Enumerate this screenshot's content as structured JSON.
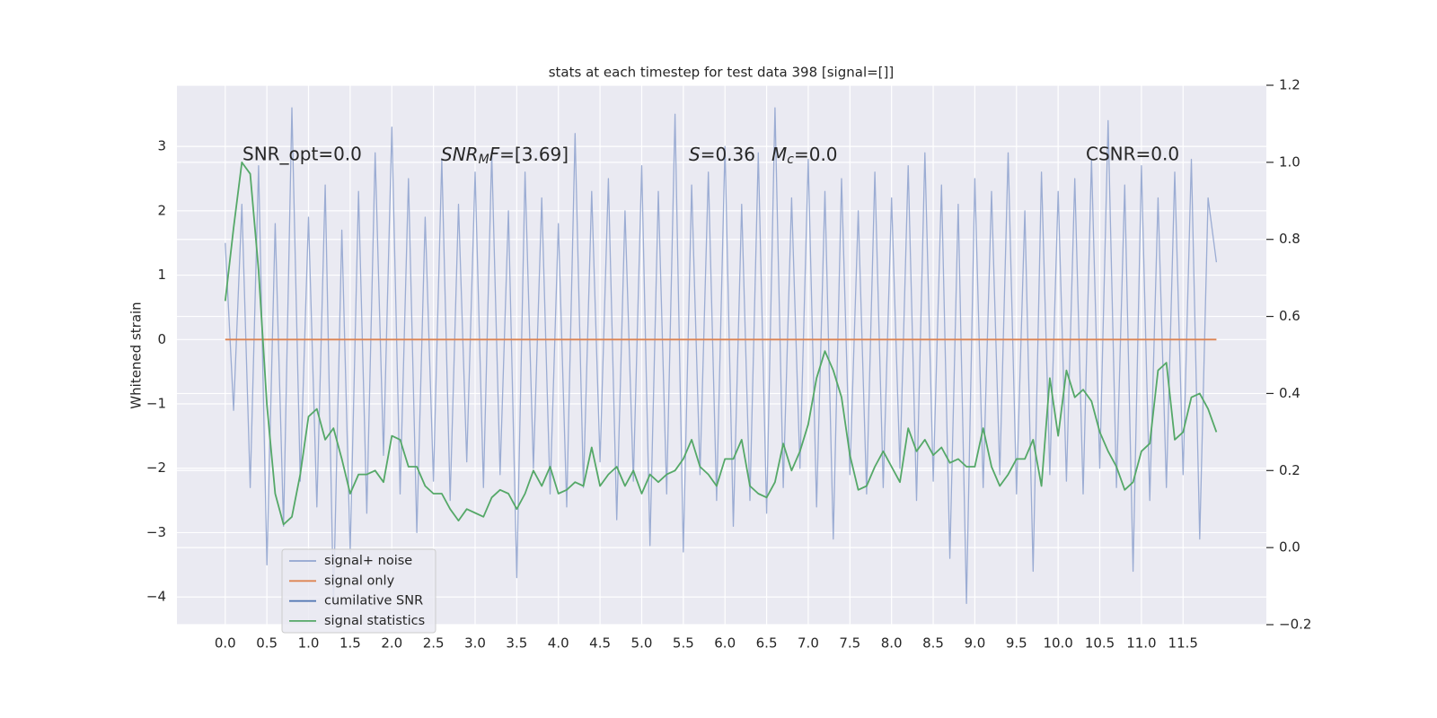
{
  "chart_data": {
    "type": "line",
    "title": "stats at each timestep for test data 398 [signal=[]]",
    "ylabel": "Whitened strain",
    "x": [
      0,
      0.1,
      0.2,
      0.3,
      0.4,
      0.5,
      0.6,
      0.7,
      0.8,
      0.9,
      1,
      1.1,
      1.2,
      1.3,
      1.4,
      1.5,
      1.6,
      1.7,
      1.8,
      1.9,
      2,
      2.1,
      2.2,
      2.3,
      2.4,
      2.5,
      2.6,
      2.7,
      2.8,
      2.9,
      3,
      3.1,
      3.2,
      3.3,
      3.4,
      3.5,
      3.6,
      3.7,
      3.8,
      3.9,
      4,
      4.1,
      4.2,
      4.3,
      4.4,
      4.5,
      4.6,
      4.7,
      4.8,
      4.9,
      5,
      5.1,
      5.2,
      5.3,
      5.4,
      5.5,
      5.6,
      5.7,
      5.8,
      5.9,
      6,
      6.1,
      6.2,
      6.3,
      6.4,
      6.5,
      6.6,
      6.7,
      6.8,
      6.9,
      7,
      7.1,
      7.2,
      7.3,
      7.4,
      7.5,
      7.6,
      7.7,
      7.8,
      7.9,
      8,
      8.1,
      8.2,
      8.3,
      8.4,
      8.5,
      8.6,
      8.7,
      8.8,
      8.9,
      9,
      9.1,
      9.2,
      9.3,
      9.4,
      9.5,
      9.6,
      9.7,
      9.8,
      9.9,
      10,
      10.1,
      10.2,
      10.3,
      10.4,
      10.5,
      10.6,
      10.7,
      10.8,
      10.9,
      11,
      11.1,
      11.2,
      11.3,
      11.4,
      11.5,
      11.6,
      11.7,
      11.8,
      11.9
    ],
    "series": [
      {
        "name": "signal+ noise",
        "color": "#92a5cf",
        "values": [
          1.5,
          -1.1,
          2.1,
          -2.3,
          2.7,
          -3.5,
          1.8,
          -2.9,
          3.6,
          -2.2,
          1.9,
          -2.6,
          2.4,
          -4.1,
          1.7,
          -3.3,
          2.3,
          -2.7,
          2.9,
          -1.8,
          3.3,
          -2.4,
          2.5,
          -3.0,
          1.9,
          -2.2,
          2.8,
          -2.5,
          2.1,
          -1.9,
          2.6,
          -2.3,
          2.9,
          -2.1,
          2.0,
          -3.7,
          2.6,
          -2.0,
          2.2,
          -2.4,
          1.8,
          -2.6,
          3.2,
          -2.3,
          2.3,
          -1.9,
          2.5,
          -2.8,
          2.0,
          -2.2,
          2.7,
          -3.2,
          2.3,
          -2.4,
          3.5,
          -3.3,
          2.4,
          -2.1,
          2.6,
          -2.5,
          3.0,
          -2.9,
          2.1,
          -2.5,
          2.9,
          -2.7,
          3.6,
          -2.3,
          2.2,
          -2.0,
          2.8,
          -2.6,
          2.3,
          -3.1,
          2.5,
          -2.1,
          2.0,
          -2.4,
          2.6,
          -2.3,
          2.2,
          -2.0,
          2.7,
          -2.5,
          2.9,
          -2.2,
          2.4,
          -3.4,
          2.1,
          -4.1,
          2.5,
          -2.3,
          2.3,
          -2.1,
          2.9,
          -2.4,
          2.0,
          -3.6,
          2.6,
          -2.1,
          2.3,
          -2.2,
          2.5,
          -2.4,
          2.8,
          -2.0,
          3.4,
          -2.3,
          2.4,
          -3.6,
          2.7,
          -2.5,
          2.2,
          -2.3,
          2.6,
          -2.1,
          2.8,
          -3.1,
          2.2,
          1.2
        ]
      },
      {
        "name": "signal only",
        "color": "#dd8452",
        "values": [
          0,
          0,
          0,
          0,
          0,
          0,
          0,
          0,
          0,
          0,
          0,
          0,
          0,
          0,
          0,
          0,
          0,
          0,
          0,
          0,
          0,
          0,
          0,
          0,
          0,
          0,
          0,
          0,
          0,
          0,
          0,
          0,
          0,
          0,
          0,
          0,
          0,
          0,
          0,
          0,
          0,
          0,
          0,
          0,
          0,
          0,
          0,
          0,
          0,
          0,
          0,
          0,
          0,
          0,
          0,
          0,
          0,
          0,
          0,
          0,
          0,
          0,
          0,
          0,
          0,
          0,
          0,
          0,
          0,
          0,
          0,
          0,
          0,
          0,
          0,
          0,
          0,
          0,
          0,
          0,
          0,
          0,
          0,
          0,
          0,
          0,
          0,
          0,
          0,
          0,
          0,
          0,
          0,
          0,
          0,
          0,
          0,
          0,
          0,
          0,
          0,
          0,
          0,
          0,
          0,
          0,
          0,
          0,
          0,
          0,
          0,
          0,
          0,
          0,
          0,
          0,
          0,
          0,
          0,
          0
        ]
      },
      {
        "name": "cumilative SNR",
        "color": "#4c72b0",
        "axis": "y2",
        "values": [
          null,
          null,
          null,
          null,
          null,
          null,
          null,
          null,
          null,
          null,
          null,
          null,
          null,
          null,
          null,
          null,
          null,
          null,
          null,
          null,
          null,
          null,
          null,
          null,
          null,
          null,
          null,
          null,
          null,
          null,
          null,
          null,
          null,
          null,
          null,
          null,
          null,
          null,
          null,
          null,
          null,
          null,
          null,
          null,
          null,
          null,
          null,
          null,
          null,
          null,
          null,
          null,
          null,
          null,
          null,
          null,
          null,
          null,
          null,
          null,
          null,
          null,
          null,
          null,
          null,
          null,
          null,
          null,
          null,
          null,
          null,
          null,
          null,
          null,
          null,
          null,
          null,
          null,
          null,
          null,
          null,
          null,
          null,
          null,
          null,
          null,
          null,
          null,
          null,
          null,
          null,
          null,
          null,
          null,
          null,
          null,
          null,
          null,
          null,
          null,
          null,
          null,
          null,
          null,
          null,
          null,
          null,
          null,
          null,
          null,
          null,
          null,
          null,
          null,
          null,
          null,
          null,
          null,
          null,
          null
        ]
      },
      {
        "name": "signal statistics",
        "color": "#55a868",
        "axis": "y2",
        "values": [
          0.64,
          0.83,
          1.0,
          0.97,
          0.72,
          0.37,
          0.14,
          0.06,
          0.08,
          0.19,
          0.34,
          0.36,
          0.28,
          0.31,
          0.23,
          0.14,
          0.19,
          0.19,
          0.2,
          0.17,
          0.29,
          0.28,
          0.21,
          0.21,
          0.16,
          0.14,
          0.14,
          0.1,
          0.07,
          0.1,
          0.09,
          0.08,
          0.13,
          0.15,
          0.14,
          0.1,
          0.14,
          0.2,
          0.16,
          0.21,
          0.14,
          0.15,
          0.17,
          0.16,
          0.26,
          0.16,
          0.19,
          0.21,
          0.16,
          0.2,
          0.14,
          0.19,
          0.17,
          0.19,
          0.2,
          0.23,
          0.28,
          0.21,
          0.19,
          0.16,
          0.23,
          0.23,
          0.28,
          0.16,
          0.14,
          0.13,
          0.17,
          0.27,
          0.2,
          0.25,
          0.32,
          0.44,
          0.51,
          0.46,
          0.39,
          0.24,
          0.15,
          0.16,
          0.21,
          0.25,
          0.21,
          0.17,
          0.31,
          0.25,
          0.28,
          0.24,
          0.26,
          0.22,
          0.23,
          0.21,
          0.21,
          0.31,
          0.21,
          0.16,
          0.19,
          0.23,
          0.23,
          0.28,
          0.16,
          0.44,
          0.29,
          0.46,
          0.39,
          0.41,
          0.38,
          0.3,
          0.25,
          0.21,
          0.15,
          0.17,
          0.25,
          0.27,
          0.46,
          0.48,
          0.28,
          0.3,
          0.39,
          0.4,
          0.36,
          0.3
        ]
      }
    ],
    "annotations": [
      "SNR_opt=0.0",
      {
        "base": "SNR",
        "sub": "M",
        "mid": "F",
        "rest": "=[3.69]"
      },
      {
        "base": "S",
        "rest": "=0.36"
      },
      {
        "base": "M",
        "sub": "c",
        "rest": "=0.0"
      },
      "CSNR=0.0"
    ],
    "xlim": [
      -0.58,
      12.5
    ],
    "xticks": [
      {
        "value": 0,
        "label": "0.0"
      },
      {
        "value": 0.5,
        "label": "0.5"
      },
      {
        "value": 1,
        "label": "1.0"
      },
      {
        "value": 1.5,
        "label": "1.5"
      },
      {
        "value": 2,
        "label": "2.0"
      },
      {
        "value": 2.5,
        "label": "2.5"
      },
      {
        "value": 3,
        "label": "3.0"
      },
      {
        "value": 3.5,
        "label": "3.5"
      },
      {
        "value": 4,
        "label": "4.0"
      },
      {
        "value": 4.5,
        "label": "4.5"
      },
      {
        "value": 5,
        "label": "5.0"
      },
      {
        "value": 5.5,
        "label": "5.5"
      },
      {
        "value": 6,
        "label": "6.0"
      },
      {
        "value": 6.5,
        "label": "6.5"
      },
      {
        "value": 7,
        "label": "7.0"
      },
      {
        "value": 7.5,
        "label": "7.5"
      },
      {
        "value": 8,
        "label": "8.0"
      },
      {
        "value": 8.5,
        "label": "8.5"
      },
      {
        "value": 9,
        "label": "9.0"
      },
      {
        "value": 9.5,
        "label": "9.5"
      },
      {
        "value": 10,
        "label": "10.0"
      },
      {
        "value": 10.5,
        "label": "10.5"
      },
      {
        "value": 11,
        "label": "11.0"
      },
      {
        "value": 11.5,
        "label": "11.5"
      }
    ],
    "ylim": [
      -4.43,
      3.95
    ],
    "yticks": [
      {
        "value": -4,
        "label": "−4"
      },
      {
        "value": -3,
        "label": "−3"
      },
      {
        "value": -2,
        "label": "−2"
      },
      {
        "value": -1,
        "label": "−1"
      },
      0,
      1,
      2,
      3
    ],
    "y2lim": [
      -0.2,
      1.2
    ],
    "y2ticks": [
      {
        "value": -0.2,
        "label": "−0.2"
      },
      {
        "value": 0,
        "label": "0.0"
      },
      {
        "value": 0.2,
        "label": "0.2"
      },
      {
        "value": 0.4,
        "label": "0.4"
      },
      {
        "value": 0.6,
        "label": "0.6"
      },
      {
        "value": 0.8,
        "label": "0.8"
      },
      {
        "value": 1,
        "label": "1.0"
      },
      {
        "value": 1.2,
        "label": "1.2"
      }
    ],
    "grid": true,
    "legend": "lower left"
  }
}
